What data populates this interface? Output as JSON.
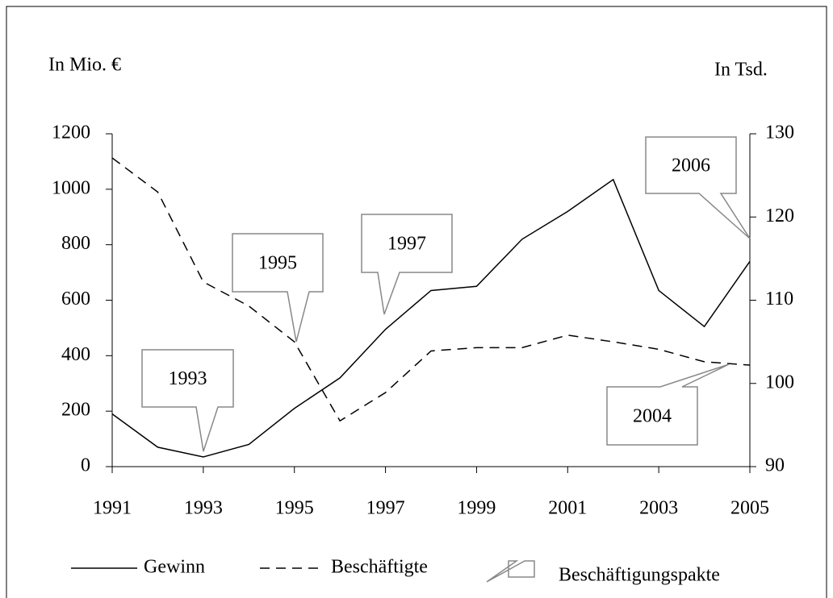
{
  "chart_data": {
    "type": "line",
    "x": [
      1991,
      1992,
      1993,
      1994,
      1995,
      1996,
      1997,
      1998,
      1999,
      2000,
      2001,
      2002,
      2003,
      2004,
      2005
    ],
    "series": [
      {
        "name": "Gewinn",
        "color": "#000000",
        "dash": "solid",
        "values": [
          190,
          70,
          35,
          80,
          210,
          320,
          495,
          635,
          650,
          820,
          920,
          1035,
          635,
          505,
          740
        ]
      },
      {
        "name": "Beschäftigte",
        "color": "#000000",
        "dash": "dashed",
        "axis": "y2",
        "values": [
          127.1,
          123.0,
          112.2,
          109.3,
          105.0,
          95.5,
          98.9,
          103.9,
          104.3,
          104.3,
          105.8,
          105.0,
          104.1,
          102.6,
          102.2
        ]
      }
    ],
    "y_label": "In Mio. €",
    "y2_label": "In Tsd.",
    "xlim": [
      1991,
      2005
    ],
    "xticks": [
      1991,
      1993,
      1995,
      1997,
      1999,
      2001,
      2003,
      2005
    ],
    "ylim": [
      0,
      1200
    ],
    "yticks": [
      0,
      200,
      400,
      600,
      800,
      1000,
      1200
    ],
    "y2lim": [
      90,
      130
    ],
    "y2ticks": [
      90,
      100,
      110,
      120,
      130
    ],
    "annotations": [
      "1993",
      "1995",
      "1997",
      "2004",
      "2006"
    ],
    "annotation_legend": "Beschäftigungspakte"
  }
}
